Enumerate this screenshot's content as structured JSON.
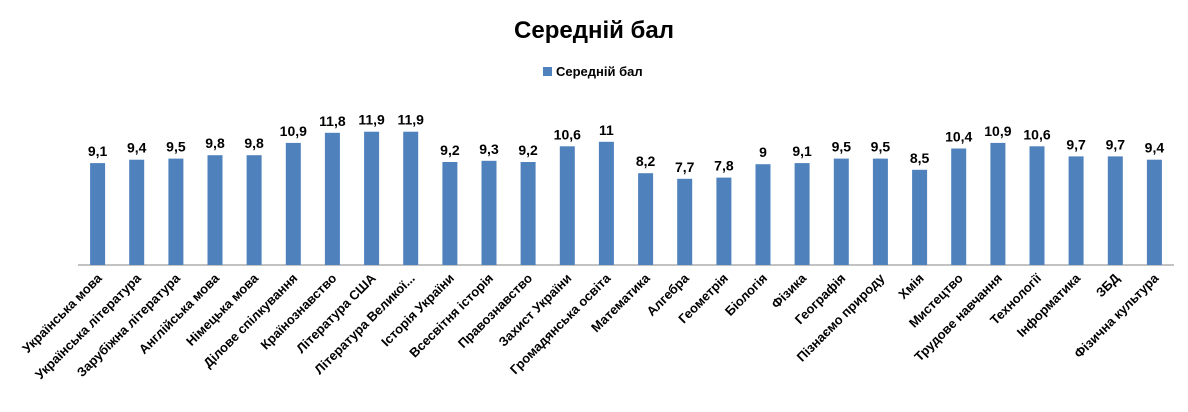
{
  "chart_data": {
    "type": "bar",
    "title": "Середній бал",
    "legend": {
      "position": "top",
      "entries": [
        "Середній бал"
      ]
    },
    "xlabel": "",
    "ylabel": "",
    "ylim": [
      0,
      14
    ],
    "grid": false,
    "categories": [
      "Українська мова",
      "Українська література",
      "Зарубіжна література",
      "Англійська мова",
      "Німецька мова",
      "Ділове спілкування",
      "Країнознавство",
      "Література США",
      "Література Великої...",
      "Історія України",
      "Всесвітня історія",
      "Правознавство",
      "Захист України",
      "Громадянська освіта",
      "Математика",
      "Алгебра",
      "Геометрія",
      "Біологія",
      "Фізика",
      "Географія",
      "Пізнаємо природу",
      "Хмія",
      "Мистецтво",
      "Трудове навчання",
      "Технології",
      "Інформатика",
      "ЗБД",
      "Фізична культура"
    ],
    "series": [
      {
        "name": "Середній бал",
        "color": "#4F81BD",
        "values": [
          9.1,
          9.4,
          9.5,
          9.8,
          9.8,
          10.9,
          11.8,
          11.9,
          11.9,
          9.2,
          9.3,
          9.2,
          10.6,
          11,
          8.2,
          7.7,
          7.8,
          9,
          9.1,
          9.5,
          9.5,
          8.5,
          10.4,
          10.9,
          10.6,
          9.7,
          9.7,
          9.4
        ],
        "labels": [
          "9,1",
          "9,4",
          "9,5",
          "9,8",
          "9,8",
          "10,9",
          "11,8",
          "11,9",
          "11,9",
          "9,2",
          "9,3",
          "9,2",
          "10,6",
          "11",
          "8,2",
          "7,7",
          "7,8",
          "9",
          "9,1",
          "9,5",
          "9,5",
          "8,5",
          "10,4",
          "10,9",
          "10,6",
          "9,7",
          "9,7",
          "9,4"
        ]
      }
    ]
  }
}
